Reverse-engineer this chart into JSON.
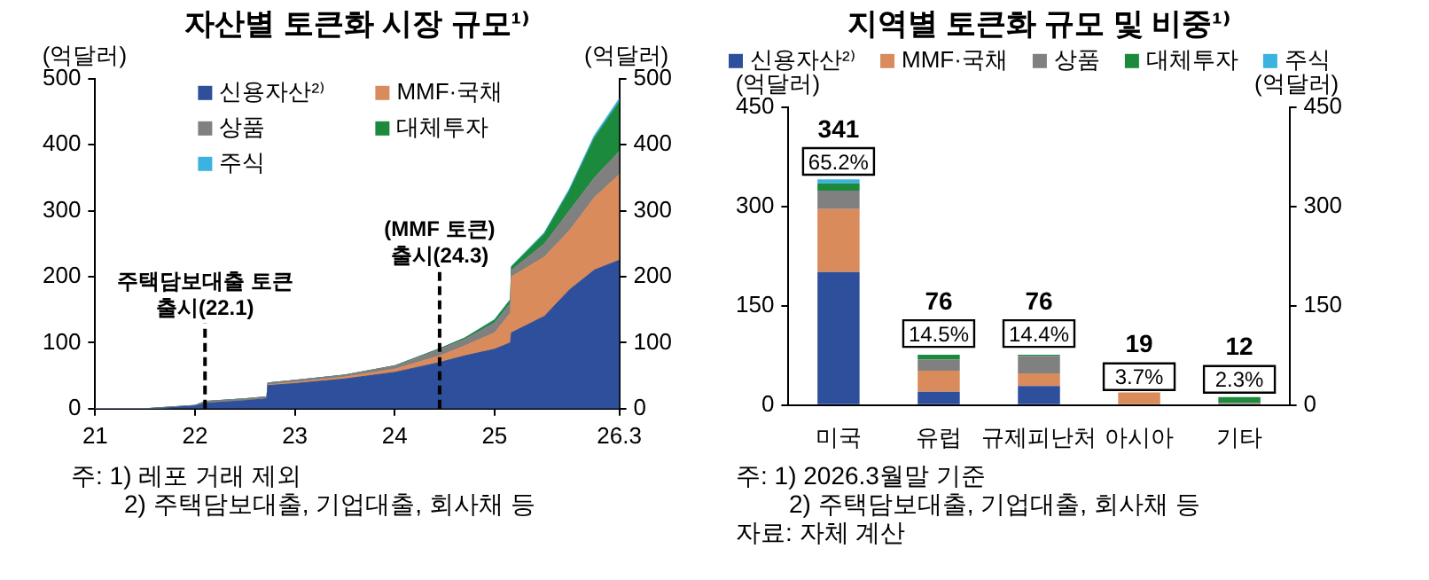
{
  "chart_data": [
    {
      "type": "area",
      "title": "자산별 토큰화 시장 규모¹⁾",
      "ylabel": "(억달러)",
      "y2label": "(억달러)",
      "stacked": true,
      "legend": "upper left",
      "grid": false,
      "x": [
        21,
        21.5,
        21.7,
        22,
        22.1,
        22.5,
        22.72,
        22.73,
        23,
        23.5,
        24,
        24.45,
        24.7,
        25,
        25.16,
        25.17,
        25.5,
        25.75,
        26,
        26.25
      ],
      "xlim": [
        21,
        26.25
      ],
      "xticks": [
        21,
        22,
        23,
        24,
        25,
        {
          "value": 26.25,
          "label": "26.3"
        }
      ],
      "ylim": [
        0,
        500
      ],
      "yticks": [
        0,
        100,
        200,
        300,
        400,
        500
      ],
      "y2lim": [
        0,
        500
      ],
      "y2ticks": [
        0,
        100,
        200,
        300,
        400,
        500
      ],
      "series": [
        {
          "name": "신용자산²⁾",
          "color": "#2e4f9b",
          "values": [
            0,
            0,
            1,
            4,
            8,
            12,
            15,
            35,
            38,
            45,
            55,
            70,
            80,
            90,
            100,
            115,
            140,
            180,
            210,
            225
          ]
        },
        {
          "name": "MMF·국채",
          "color": "#d98b5b",
          "values": [
            0,
            0,
            0,
            0,
            0,
            0,
            0,
            1,
            2,
            3,
            5,
            10,
            15,
            25,
            45,
            85,
            90,
            90,
            110,
            130
          ]
        },
        {
          "name": "상품",
          "color": "#808080",
          "values": [
            0,
            0,
            1,
            1,
            3,
            3,
            3,
            3,
            3,
            3,
            5,
            10,
            10,
            15,
            15,
            10,
            20,
            30,
            30,
            35
          ]
        },
        {
          "name": "대체투자",
          "color": "#1b8a3c",
          "values": [
            0,
            0,
            0,
            0,
            0,
            0,
            0,
            0,
            0,
            0,
            0,
            1,
            2,
            4,
            5,
            5,
            15,
            30,
            60,
            75
          ]
        },
        {
          "name": "주식",
          "color": "#3bb3e0",
          "values": [
            0,
            0,
            0,
            0,
            0,
            0,
            0,
            0,
            0,
            0,
            0,
            0,
            0,
            1,
            1,
            1,
            2,
            3,
            4,
            5
          ]
        }
      ],
      "ref_lines": [
        {
          "axis": "x",
          "value": 22.1,
          "label": "주택담보대출 토큰 출시(22.1)",
          "line_style": "dashed"
        },
        {
          "axis": "x",
          "value": 24.45,
          "label": "(MMF 토큰) 출시(24.3)",
          "line_style": "dashed"
        }
      ],
      "annotations": [
        "주: 1) 레포 거래 제외",
        "2) 주택담보대출, 기업대출, 회사채 등"
      ]
    },
    {
      "type": "bar",
      "title": "지역별 토큰화 규모 및 비중¹⁾",
      "ylabel": "(억달러)",
      "y2label": "(억달러)",
      "stacked": true,
      "legend": "top",
      "grid": false,
      "categories": [
        "미국",
        "유럽",
        "규제피난처",
        "아시아",
        "기타"
      ],
      "ylim": [
        0,
        450
      ],
      "yticks": [
        0,
        150,
        300,
        450
      ],
      "y2lim": [
        0,
        450
      ],
      "y2ticks": [
        0,
        150,
        300,
        450
      ],
      "series": [
        {
          "name": "신용자산²⁾",
          "color": "#2e4f9b",
          "values": [
            201,
            20,
            29,
            0,
            2
          ]
        },
        {
          "name": "MMF·국채",
          "color": "#d98b5b",
          "values": [
            95,
            32,
            19,
            19,
            1
          ]
        },
        {
          "name": "상품",
          "color": "#808080",
          "values": [
            28,
            17,
            26,
            0,
            0
          ]
        },
        {
          "name": "대체투자",
          "color": "#1b8a3c",
          "values": [
            11,
            7,
            2,
            null,
            9
          ]
        },
        {
          "name": "주식",
          "color": "#3bb3e0",
          "values": [
            6,
            0,
            0,
            0,
            0
          ]
        }
      ],
      "totals": [
        "341",
        "76",
        "76",
        "19",
        "12"
      ],
      "annotations": [
        {
          "text": "65.2%",
          "x": "미국",
          "y": 368
        },
        {
          "text": "14.5%",
          "x": "유럽",
          "y": 108
        },
        {
          "text": "14.4%",
          "x": "규제피난처",
          "y": 108
        },
        {
          "text": "3.7%",
          "x": "아시아",
          "y": 43
        },
        {
          "text": "2.3%",
          "x": "기타",
          "y": 39
        },
        "주: 1) 2026.3월말 기준",
        "2) 주택담보대출, 기업대출, 회사채 등",
        "자료: 자체 계산"
      ]
    }
  ]
}
